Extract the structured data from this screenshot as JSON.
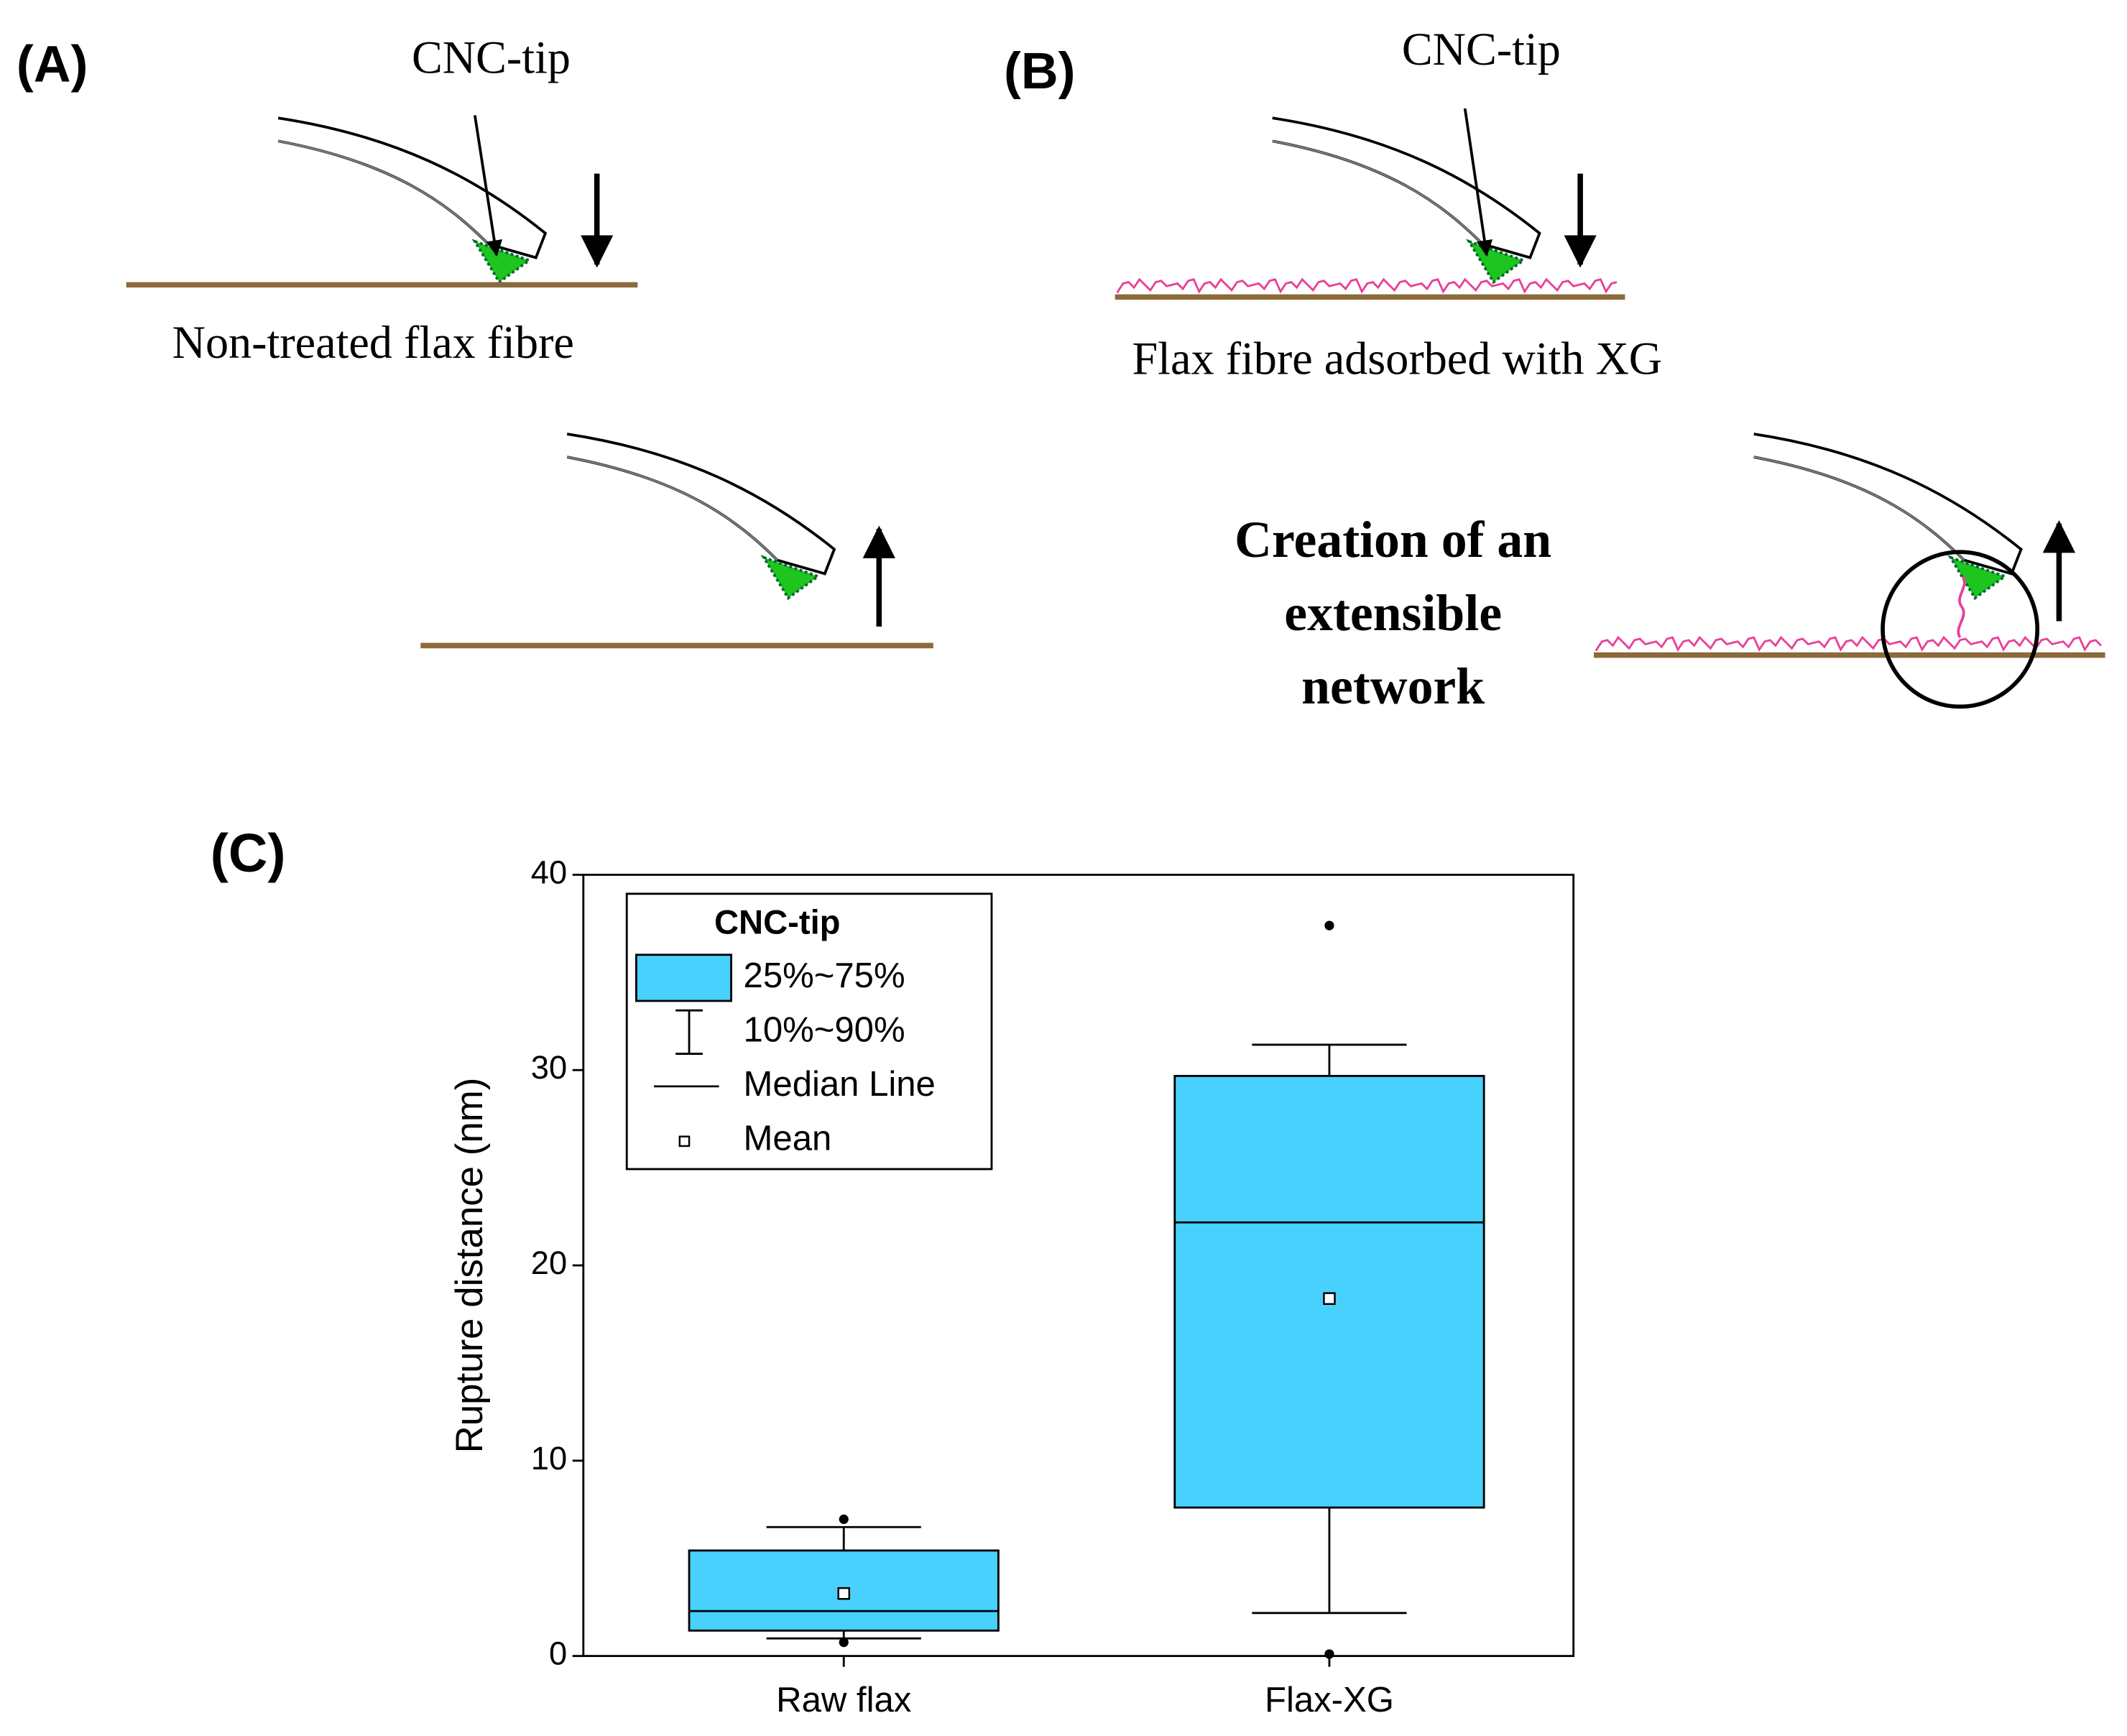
{
  "diagram": {
    "panel_a": "(A)",
    "panel_b": "(B)",
    "panel_c": "(C)",
    "tip_label_a": "CNC-tip",
    "tip_label_b": "CNC-tip",
    "caption_a": "Non-treated flax fibre",
    "caption_b": "Flax fibre adsorbed with XG",
    "network_lines": [
      "Creation of an",
      "extensible",
      "network"
    ]
  },
  "chart_data": {
    "type": "box",
    "y_label": "Rupture distance (nm)",
    "categories": [
      "Raw flax",
      "Flax-XG"
    ],
    "color": "#48d1fd",
    "ylim": [
      0,
      40
    ],
    "yticks": [
      0,
      10,
      20,
      30,
      40
    ],
    "boxes": [
      {
        "q1": 1.3,
        "q3": 5.4,
        "median": 2.3,
        "mean": 3.2,
        "whisker_low": 0.9,
        "whisker_high": 6.6,
        "outliers": [
          7.0,
          0.7
        ]
      },
      {
        "q1": 7.6,
        "q3": 29.7,
        "median": 22.2,
        "mean": 18.3,
        "whisker_low": 2.2,
        "whisker_high": 31.3,
        "outliers": [
          37.4,
          0.1
        ]
      }
    ],
    "legend": {
      "title": "CNC-tip",
      "entries": [
        "25%~75%",
        "10%~90%",
        "Median Line",
        "Mean"
      ]
    }
  }
}
